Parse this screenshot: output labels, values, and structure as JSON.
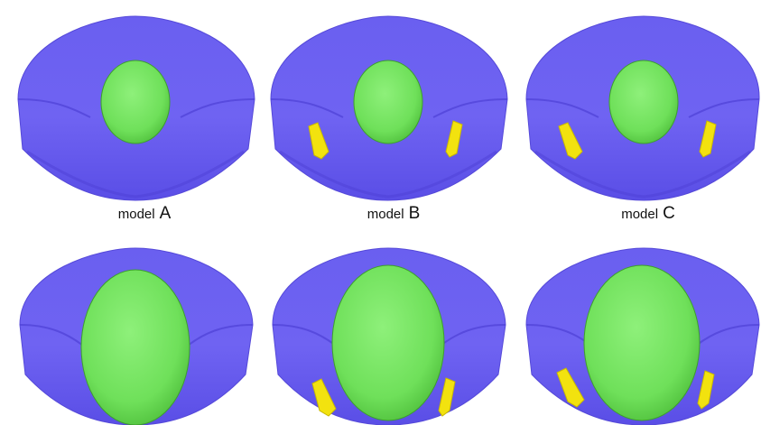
{
  "figure": {
    "rows": 2,
    "columns": 3,
    "colors": {
      "tissue": "#6f63f2",
      "tissue_shadow": "#4d40d6",
      "head": "#6fe05a",
      "head_shadow": "#4fbf3c",
      "marker": "#f2e20f"
    },
    "panels": [
      {
        "row": 1,
        "model": "A",
        "markers": 0,
        "head_size": "small"
      },
      {
        "row": 1,
        "model": "B",
        "markers": 2,
        "head_size": "small"
      },
      {
        "row": 1,
        "model": "C",
        "markers": 2,
        "head_size": "small"
      },
      {
        "row": 2,
        "model": "A",
        "markers": 0,
        "head_size": "large"
      },
      {
        "row": 2,
        "model": "B",
        "markers": 2,
        "head_size": "large"
      },
      {
        "row": 2,
        "model": "C",
        "markers": 2,
        "head_size": "large"
      }
    ]
  },
  "labels": [
    {
      "word": "model",
      "letter": "A"
    },
    {
      "word": "model",
      "letter": "B"
    },
    {
      "word": "model",
      "letter": "C"
    }
  ]
}
